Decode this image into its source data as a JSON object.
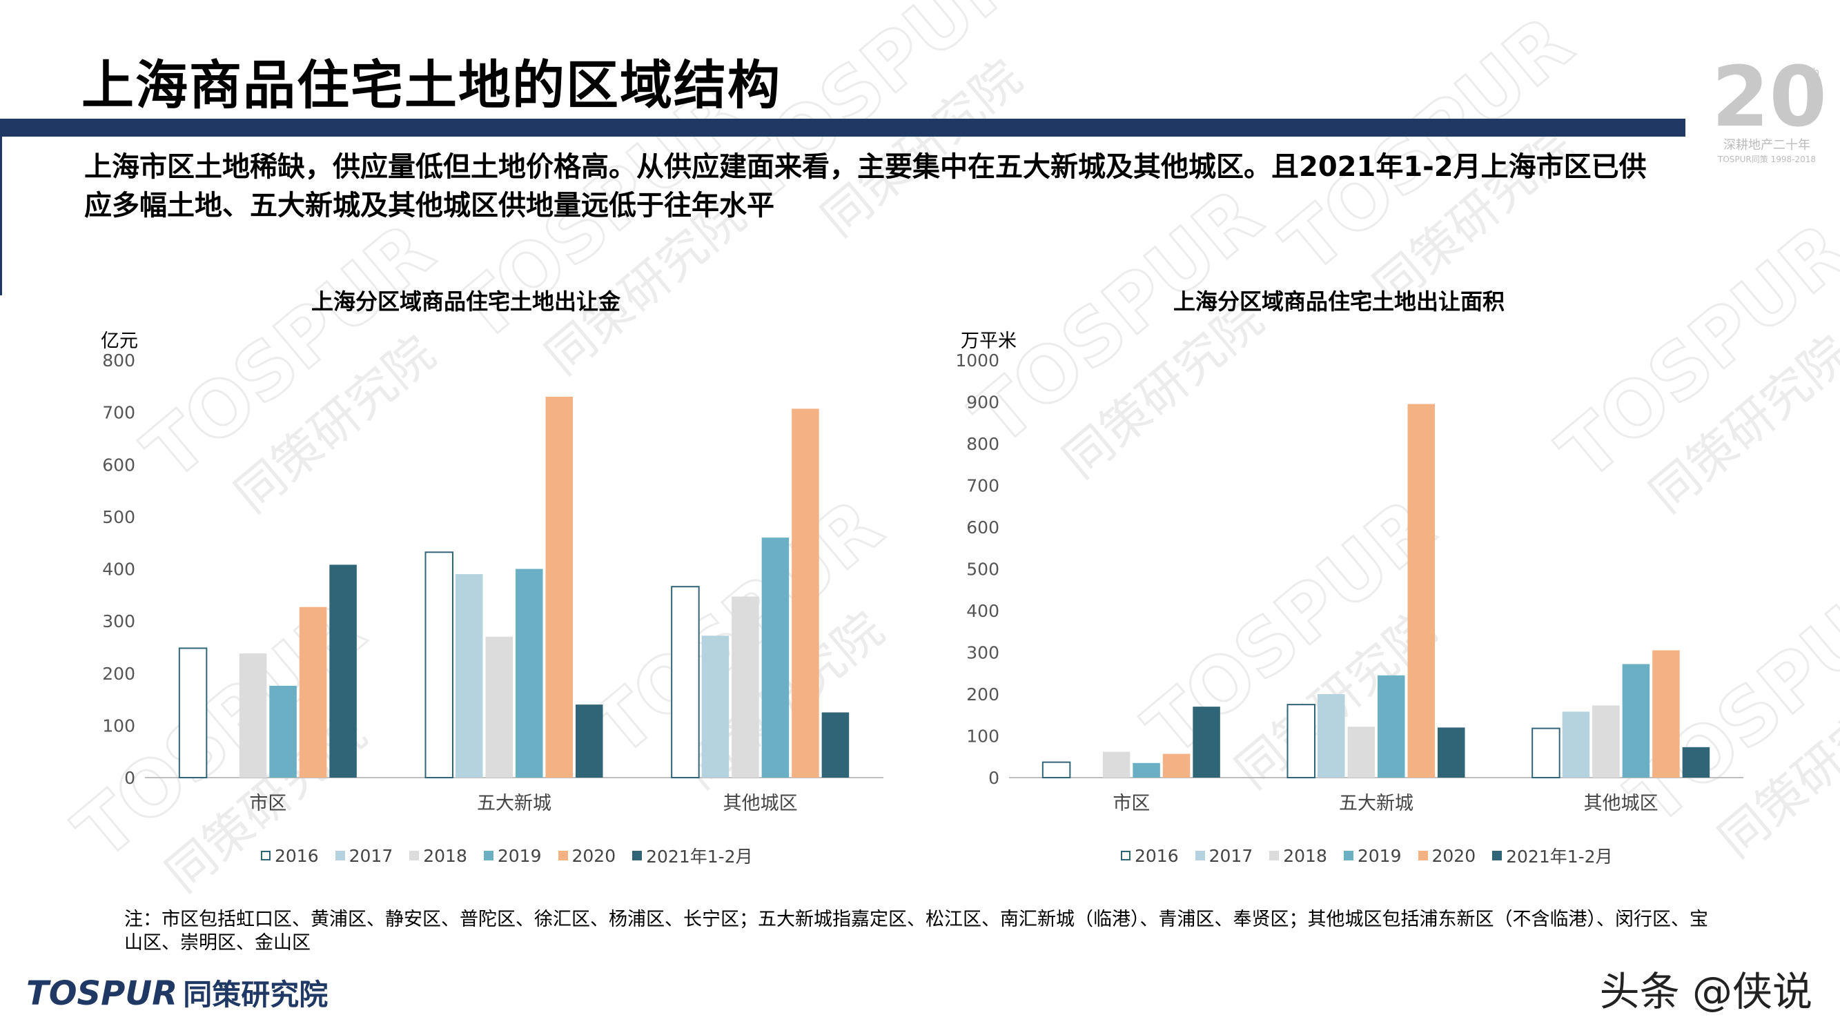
{
  "header": {
    "title": "上海商品住宅土地的区域结构",
    "subtitle": "上海市区土地稀缺，供应量低但土地价格高。从供应建面来看，主要集中在五大新城及其他城区。且2021年1-2月上海市区已供应多幅土地、五大新城及其他城区供地量远低于往年水平"
  },
  "logo": {
    "number": "20",
    "sup": "th",
    "line1": "深耕地产二十年",
    "line2": "TOSPUR同策 1998-2018"
  },
  "colors": {
    "y2016": "#ffffff",
    "y2017": "#b4d3de",
    "y2018": "#dcdcdc",
    "y2019": "#6aafc4",
    "y2020": "#f4b183",
    "y2021": "#2f6577",
    "outline": "#2f6577",
    "rule": "#1f3864"
  },
  "chart_data": [
    {
      "type": "bar",
      "title": "上海分区域商品住宅土地出让金",
      "unit": "亿元",
      "categories": [
        "市区",
        "五大新城",
        "其他城区"
      ],
      "ylim": [
        0,
        800
      ],
      "yticks": [
        "0",
        "100",
        "200",
        "300",
        "400",
        "500",
        "600",
        "700",
        "800"
      ],
      "series": [
        {
          "name": "2016",
          "values": [
            248,
            432,
            366
          ]
        },
        {
          "name": "2017",
          "values": [
            0,
            390,
            272
          ]
        },
        {
          "name": "2018",
          "values": [
            238,
            270,
            347
          ]
        },
        {
          "name": "2019",
          "values": [
            176,
            400,
            460
          ]
        },
        {
          "name": "2020",
          "values": [
            327,
            730,
            707
          ]
        },
        {
          "name": "2021年1-2月",
          "values": [
            408,
            140,
            125
          ]
        }
      ]
    },
    {
      "type": "bar",
      "title": "上海分区域商品住宅土地出让面积",
      "unit": "万平米",
      "categories": [
        "市区",
        "五大新城",
        "其他城区"
      ],
      "ylim": [
        0,
        1000
      ],
      "yticks": [
        "0",
        "100",
        "200",
        "300",
        "400",
        "500",
        "600",
        "700",
        "800",
        "900",
        "1000"
      ],
      "series": [
        {
          "name": "2016",
          "values": [
            37,
            175,
            118
          ]
        },
        {
          "name": "2017",
          "values": [
            0,
            200,
            158
          ]
        },
        {
          "name": "2018",
          "values": [
            62,
            122,
            173
          ]
        },
        {
          "name": "2019",
          "values": [
            35,
            245,
            272
          ]
        },
        {
          "name": "2020",
          "values": [
            57,
            895,
            305
          ]
        },
        {
          "name": "2021年1-2月",
          "values": [
            170,
            120,
            73
          ]
        }
      ]
    }
  ],
  "note": "注：市区包括虹口区、黄浦区、静安区、普陀区、徐汇区、杨浦区、长宁区；五大新城指嘉定区、松江区、南汇新城（临港）、青浦区、奉贤区；其他城区包括浦东新区（不含临港）、闵行区、宝山区、崇明区、金山区",
  "footer": {
    "brand": "TOSPUR",
    "brand_cn": "同策研究院",
    "credit": "头条 @侠说"
  },
  "watermark": {
    "text": "TOSPUR",
    "cn": "同策研究院"
  }
}
